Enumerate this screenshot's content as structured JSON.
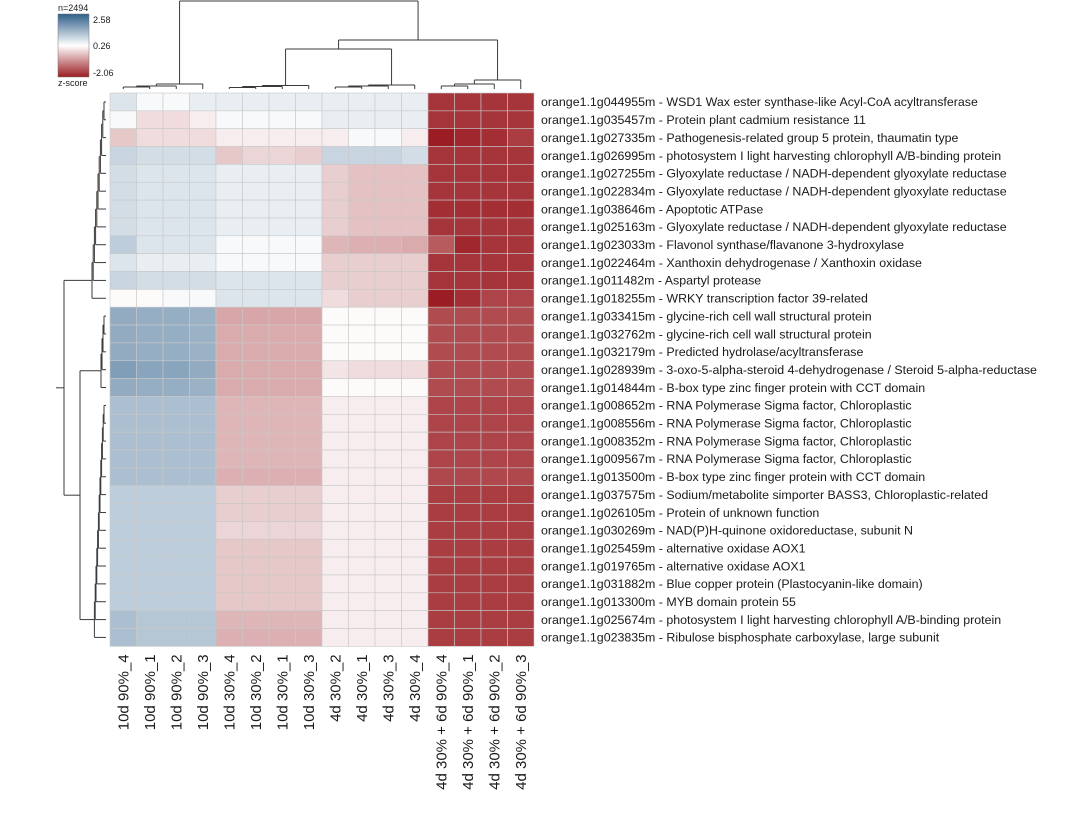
{
  "chart_data": {
    "type": "heatmap",
    "title": "",
    "legend": {
      "n_label": "n=2494",
      "max": "2.58",
      "mid": "0.26",
      "min": "-2.06",
      "title": "z-score",
      "color_high": "#2f5f8a",
      "color_mid": "#ffffff",
      "color_low": "#9b1c22"
    },
    "columns": [
      "10d 90%_4",
      "10d 90%_1",
      "10d 90%_2",
      "10d 90%_3",
      "10d 30%_4",
      "10d 30%_2",
      "10d 30%_1",
      "10d 30%_3",
      "4d 30%_2",
      "4d 30%_1",
      "4d 30%_3",
      "4d 30%_4",
      "4d 30% + 6d 90%_4",
      "4d 30% + 6d 90%_1",
      "4d 30% + 6d 90%_2",
      "4d 30% + 6d 90%_3"
    ],
    "rows": [
      "orange1.1g044955m - WSD1 Wax ester synthase-like Acyl-CoA acyltransferase",
      "orange1.1g035457m - Protein plant cadmium resistance 11",
      "orange1.1g027335m - Pathogenesis-related group 5 protein, thaumatin type",
      "orange1.1g026995m - photosystem I light harvesting chlorophyll A/B-binding protein",
      "orange1.1g027255m - Glyoxylate reductase / NADH-dependent glyoxylate reductase",
      "orange1.1g022834m - Glyoxylate reductase / NADH-dependent glyoxylate reductase",
      "orange1.1g038646m - Apoptotic ATPase",
      "orange1.1g025163m - Glyoxylate reductase / NADH-dependent glyoxylate reductase",
      "orange1.1g023033m - Flavonol synthase/flavanone 3-hydroxylase",
      "orange1.1g022464m - Xanthoxin dehydrogenase / Xanthoxin oxidase",
      "orange1.1g011482m - Aspartyl protease",
      "orange1.1g018255m - WRKY transcription factor 39-related",
      "orange1.1g033415m - glycine-rich cell wall structural protein",
      "orange1.1g032762m - glycine-rich cell wall structural protein",
      "orange1.1g032179m - Predicted hydrolase/acyltransferase",
      "orange1.1g028939m - 3-oxo-5-alpha-steroid 4-dehydrogenase / Steroid 5-alpha-reductase",
      "orange1.1g014844m - B-box type zinc finger protein with CCT domain",
      "orange1.1g008652m - RNA Polymerase Sigma factor, Chloroplastic",
      "orange1.1g008556m - RNA Polymerase Sigma factor, Chloroplastic",
      "orange1.1g008352m - RNA Polymerase Sigma factor, Chloroplastic",
      "orange1.1g009567m - RNA Polymerase Sigma factor, Chloroplastic",
      "orange1.1g013500m - B-box type zinc finger protein with CCT domain",
      "orange1.1g037575m - Sodium/metabolite simporter BASS3, Chloroplastic-related",
      "orange1.1g026105m - Protein of unknown function",
      "orange1.1g030269m - NAD(P)H-quinone oxidoreductase, subunit N",
      "orange1.1g025459m - alternative oxidase AOX1",
      "orange1.1g019765m - alternative oxidase AOX1",
      "orange1.1g031882m - Blue copper protein (Plastocyanin-like domain)",
      "orange1.1g013300m - MYB domain protein 55",
      "orange1.1g025674m - photosystem I light harvesting chlorophyll A/B-binding protein",
      "orange1.1g023835m - Ribulose bisphosphate carboxylase, large subunit"
    ],
    "values": [
      [
        0.5,
        0.3,
        0.3,
        0.4,
        0.4,
        0.4,
        0.4,
        0.4,
        0.4,
        0.4,
        0.4,
        0.4,
        -1.7,
        -1.7,
        -1.7,
        -1.7
      ],
      [
        0.3,
        0.1,
        0.1,
        0.2,
        0.3,
        0.3,
        0.3,
        0.3,
        0.4,
        0.4,
        0.4,
        0.4,
        -1.7,
        -1.7,
        -1.7,
        -1.7
      ],
      [
        -0.05,
        0.1,
        0.1,
        0.1,
        0.2,
        0.2,
        0.2,
        0.2,
        0.2,
        0.3,
        0.3,
        0.2,
        -2.06,
        -1.9,
        -1.8,
        -1.6
      ],
      [
        0.7,
        0.6,
        0.6,
        0.6,
        -0.05,
        0.05,
        0.05,
        0.0,
        0.7,
        0.7,
        0.7,
        0.6,
        -1.7,
        -1.7,
        -1.7,
        -1.7
      ],
      [
        0.6,
        0.5,
        0.5,
        0.5,
        0.4,
        0.4,
        0.4,
        0.4,
        0.0,
        -0.1,
        -0.1,
        -0.1,
        -1.7,
        -1.7,
        -1.7,
        -1.7
      ],
      [
        0.6,
        0.5,
        0.5,
        0.5,
        0.4,
        0.4,
        0.4,
        0.4,
        0.0,
        -0.1,
        -0.1,
        -0.1,
        -1.7,
        -1.7,
        -1.7,
        -1.7
      ],
      [
        0.6,
        0.5,
        0.5,
        0.5,
        0.4,
        0.4,
        0.4,
        0.4,
        0.0,
        -0.1,
        -0.1,
        -0.1,
        -1.8,
        -1.8,
        -1.8,
        -1.8
      ],
      [
        0.6,
        0.5,
        0.5,
        0.5,
        0.4,
        0.4,
        0.4,
        0.4,
        0.0,
        -0.1,
        -0.1,
        -0.1,
        -1.7,
        -1.7,
        -1.7,
        -1.7
      ],
      [
        0.8,
        0.5,
        0.5,
        0.5,
        0.3,
        0.3,
        0.3,
        0.3,
        -0.2,
        -0.25,
        -0.25,
        -0.3,
        -1.2,
        -1.9,
        -1.7,
        -1.7
      ],
      [
        0.5,
        0.4,
        0.4,
        0.4,
        0.3,
        0.3,
        0.3,
        0.3,
        0.0,
        0.0,
        0.0,
        0.0,
        -1.7,
        -1.7,
        -1.7,
        -1.7
      ],
      [
        0.7,
        0.6,
        0.6,
        0.6,
        0.5,
        0.5,
        0.5,
        0.5,
        0.0,
        0.0,
        0.0,
        0.0,
        -1.7,
        -1.7,
        -1.7,
        -1.7
      ],
      [
        0.25,
        0.25,
        0.3,
        0.3,
        0.5,
        0.5,
        0.5,
        0.5,
        0.1,
        0.0,
        0.0,
        0.0,
        -2.06,
        -1.8,
        -1.5,
        -1.5
      ],
      [
        1.3,
        1.25,
        1.25,
        1.2,
        -0.35,
        -0.35,
        -0.35,
        -0.35,
        0.25,
        0.25,
        0.25,
        0.25,
        -1.4,
        -1.4,
        -1.4,
        -1.4
      ],
      [
        1.3,
        1.25,
        1.25,
        1.2,
        -0.3,
        -0.3,
        -0.3,
        -0.3,
        0.25,
        0.25,
        0.25,
        0.25,
        -1.4,
        -1.4,
        -1.4,
        -1.4
      ],
      [
        1.3,
        1.25,
        1.25,
        1.2,
        -0.3,
        -0.3,
        -0.3,
        -0.3,
        0.25,
        0.25,
        0.25,
        0.25,
        -1.4,
        -1.4,
        -1.4,
        -1.4
      ],
      [
        1.5,
        1.4,
        1.4,
        1.3,
        -0.3,
        -0.3,
        -0.3,
        -0.3,
        0.15,
        0.1,
        0.1,
        0.1,
        -1.4,
        -1.4,
        -1.4,
        -1.4
      ],
      [
        1.3,
        1.25,
        1.25,
        1.2,
        -0.3,
        -0.3,
        -0.3,
        -0.3,
        0.25,
        0.25,
        0.25,
        0.25,
        -1.4,
        -1.4,
        -1.4,
        -1.4
      ],
      [
        1.0,
        1.0,
        1.0,
        1.0,
        -0.2,
        -0.2,
        -0.2,
        -0.2,
        0.2,
        0.2,
        0.2,
        0.2,
        -1.5,
        -1.5,
        -1.5,
        -1.5
      ],
      [
        1.0,
        1.0,
        1.0,
        1.0,
        -0.2,
        -0.2,
        -0.2,
        -0.2,
        0.2,
        0.2,
        0.2,
        0.2,
        -1.5,
        -1.5,
        -1.5,
        -1.5
      ],
      [
        1.0,
        1.0,
        1.0,
        1.0,
        -0.2,
        -0.2,
        -0.2,
        -0.2,
        0.2,
        0.2,
        0.2,
        0.2,
        -1.5,
        -1.5,
        -1.5,
        -1.5
      ],
      [
        1.0,
        1.0,
        1.0,
        1.0,
        -0.2,
        -0.2,
        -0.2,
        -0.2,
        0.2,
        0.2,
        0.2,
        0.2,
        -1.5,
        -1.5,
        -1.5,
        -1.5
      ],
      [
        1.0,
        1.0,
        1.0,
        1.0,
        -0.25,
        -0.25,
        -0.25,
        -0.25,
        0.2,
        0.2,
        0.2,
        0.2,
        -1.45,
        -1.45,
        -1.45,
        -1.45
      ],
      [
        0.8,
        0.8,
        0.8,
        0.8,
        0.0,
        0.0,
        0.0,
        0.0,
        0.2,
        0.2,
        0.2,
        0.2,
        -1.6,
        -1.6,
        -1.6,
        -1.6
      ],
      [
        0.8,
        0.8,
        0.8,
        0.8,
        0.0,
        0.0,
        0.0,
        0.0,
        0.2,
        0.2,
        0.2,
        0.2,
        -1.6,
        -1.6,
        -1.6,
        -1.6
      ],
      [
        0.8,
        0.8,
        0.8,
        0.8,
        0.05,
        0.05,
        0.05,
        0.05,
        0.2,
        0.2,
        0.2,
        0.2,
        -1.6,
        -1.6,
        -1.6,
        -1.6
      ],
      [
        0.8,
        0.8,
        0.8,
        0.8,
        -0.05,
        -0.05,
        -0.05,
        -0.05,
        0.2,
        0.2,
        0.2,
        0.2,
        -1.6,
        -1.6,
        -1.6,
        -1.6
      ],
      [
        0.8,
        0.8,
        0.8,
        0.8,
        -0.05,
        -0.05,
        -0.05,
        -0.05,
        0.2,
        0.2,
        0.2,
        0.2,
        -1.6,
        -1.6,
        -1.6,
        -1.6
      ],
      [
        0.8,
        0.8,
        0.8,
        0.8,
        -0.05,
        -0.05,
        -0.05,
        -0.05,
        0.2,
        0.2,
        0.2,
        0.2,
        -1.6,
        -1.6,
        -1.6,
        -1.6
      ],
      [
        0.8,
        0.8,
        0.8,
        0.8,
        -0.05,
        -0.05,
        -0.05,
        -0.05,
        0.2,
        0.2,
        0.2,
        0.2,
        -1.6,
        -1.6,
        -1.6,
        -1.6
      ],
      [
        1.0,
        0.9,
        0.9,
        0.9,
        -0.2,
        -0.2,
        -0.2,
        -0.2,
        0.2,
        0.2,
        0.2,
        0.2,
        -1.6,
        -1.6,
        -1.6,
        -1.6
      ],
      [
        1.0,
        0.9,
        0.9,
        0.9,
        -0.25,
        -0.25,
        -0.25,
        -0.25,
        0.2,
        0.2,
        0.2,
        0.2,
        -1.6,
        -1.6,
        -1.6,
        -1.6
      ]
    ]
  }
}
